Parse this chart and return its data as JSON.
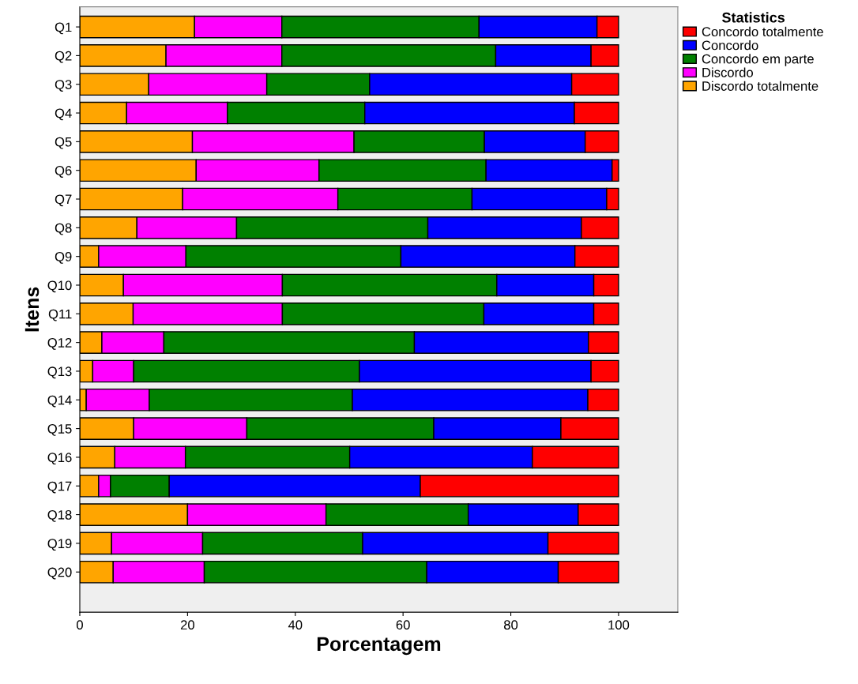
{
  "chart_data": {
    "type": "bar",
    "orientation": "horizontal",
    "stacked": true,
    "xlabel": "Porcentagem",
    "ylabel": "Itens",
    "legend_title": "Statistics",
    "legend": "top right",
    "grid": false,
    "categories": [
      "Q1",
      "Q2",
      "Q3",
      "Q4",
      "Q5",
      "Q6",
      "Q7",
      "Q8",
      "Q9",
      "Q10",
      "Q11",
      "Q12",
      "Q13",
      "Q14",
      "Q15",
      "Q16",
      "Q17",
      "Q18",
      "Q19",
      "Q20"
    ],
    "xlim": [
      0,
      111
    ],
    "xticks": [
      0,
      20,
      40,
      60,
      80,
      100
    ],
    "series": [
      {
        "name": "Discordo totalmente",
        "color": "#ffa500",
        "values": [
          21.3,
          16.0,
          12.8,
          8.7,
          20.9,
          21.6,
          19.1,
          10.6,
          3.5,
          8.1,
          9.9,
          4.1,
          2.4,
          1.2,
          10.0,
          6.5,
          3.5,
          20.0,
          5.9,
          6.2
        ]
      },
      {
        "name": "Discordo",
        "color": "#ff00ff",
        "values": [
          16.2,
          21.5,
          21.9,
          18.7,
          30.0,
          22.8,
          28.8,
          18.5,
          16.2,
          29.5,
          27.7,
          11.5,
          7.6,
          11.7,
          21.0,
          13.1,
          2.2,
          25.7,
          16.9,
          16.9
        ]
      },
      {
        "name": "Concordo em parte",
        "color": "#008000",
        "values": [
          36.6,
          39.7,
          19.1,
          25.5,
          24.2,
          31.0,
          24.9,
          35.5,
          39.9,
          39.8,
          37.4,
          46.5,
          41.9,
          37.7,
          34.7,
          30.5,
          10.9,
          26.4,
          29.7,
          41.3
        ]
      },
      {
        "name": "Concordo",
        "color": "#0000ff",
        "values": [
          21.9,
          17.7,
          37.5,
          38.9,
          18.7,
          23.4,
          25.0,
          28.5,
          32.3,
          18.0,
          20.4,
          32.3,
          43.0,
          43.7,
          23.6,
          33.9,
          46.6,
          20.4,
          34.4,
          24.4
        ]
      },
      {
        "name": "Concordo totalmente",
        "color": "#ff0000",
        "values": [
          4.0,
          5.1,
          8.7,
          8.2,
          6.2,
          1.2,
          2.2,
          6.9,
          8.1,
          4.6,
          4.6,
          5.6,
          5.1,
          5.7,
          10.7,
          16.0,
          36.8,
          7.5,
          13.1,
          11.2
        ]
      }
    ]
  }
}
